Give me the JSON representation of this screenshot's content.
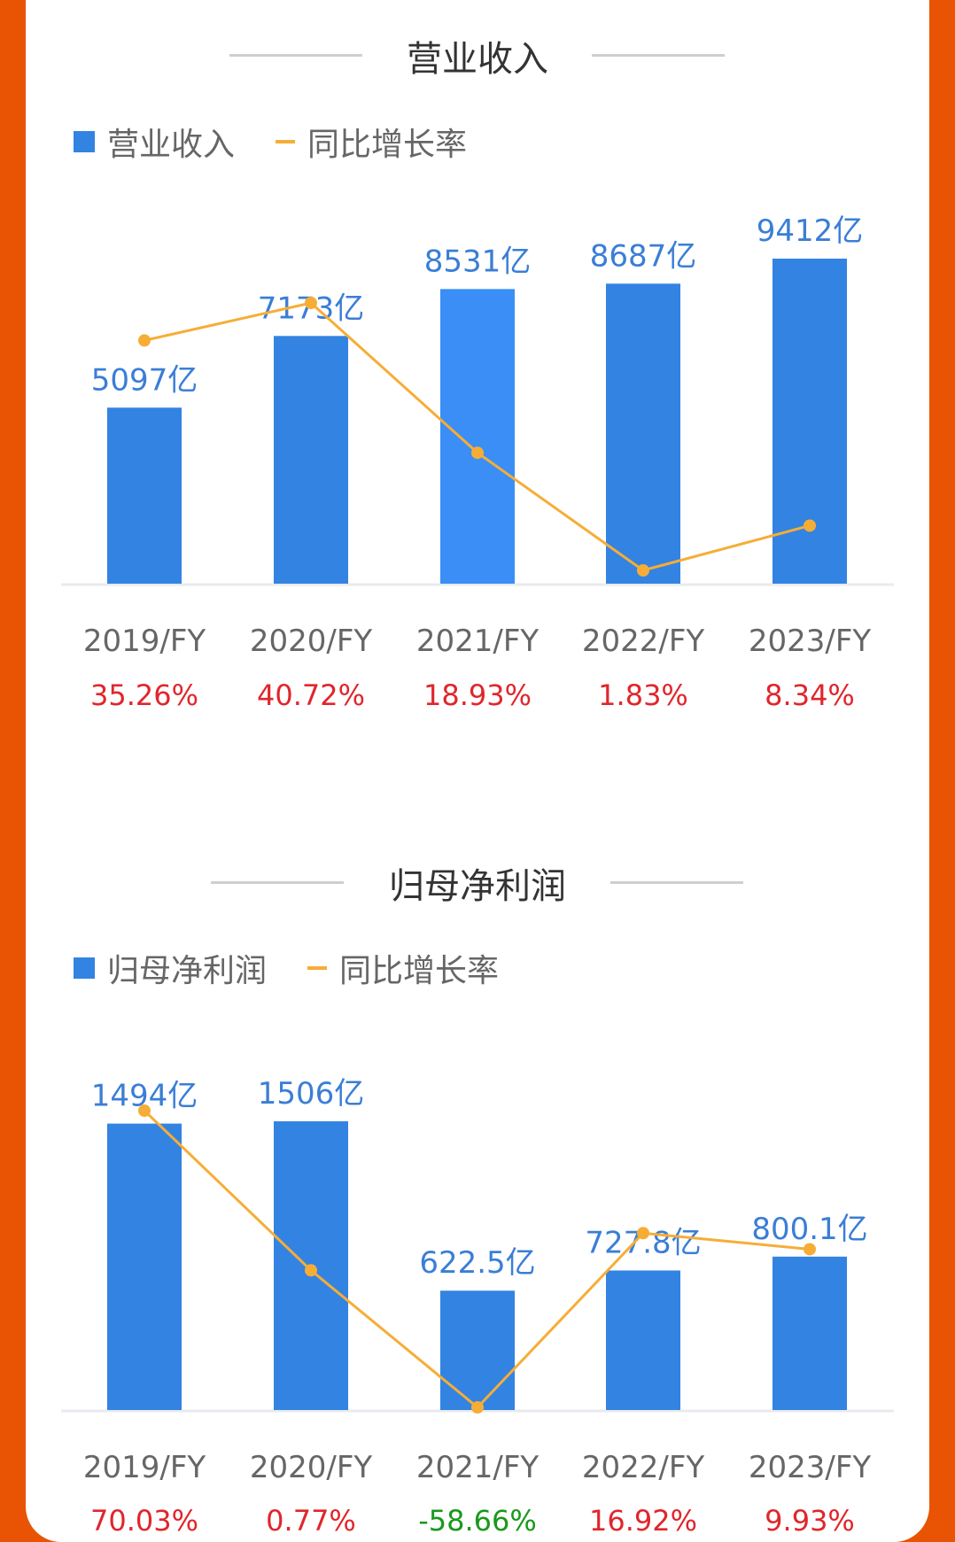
{
  "colors": {
    "bar": "#3383e2",
    "bar_highlight": "#3a8ef6",
    "line": "#f6ad36",
    "up": "#e0262c",
    "down": "#18991b",
    "label": "#3a7ed6",
    "axis_text": "#666666",
    "baseline": "#e8ebef"
  },
  "chart_data": [
    {
      "type": "bar+line",
      "title": "营业收入",
      "legend": {
        "bar": "营业收入",
        "line": "同比增长率"
      },
      "categories": [
        "2019/FY",
        "2020/FY",
        "2021/FY",
        "2022/FY",
        "2023/FY"
      ],
      "bar_values": [
        5097,
        7173,
        8531,
        8687,
        9412
      ],
      "bar_labels": [
        "5097亿",
        "7173亿",
        "8531亿",
        "8687亿",
        "9412亿"
      ],
      "line_values": [
        35.26,
        40.72,
        18.93,
        1.83,
        8.34
      ],
      "line_labels": [
        "35.26%",
        "40.72%",
        "18.93%",
        "1.83%",
        "8.34%"
      ],
      "highlight_index": 2
    },
    {
      "type": "bar+line",
      "title": "归母净利润",
      "legend": {
        "bar": "归母净利润",
        "line": "同比增长率"
      },
      "categories": [
        "2019/FY",
        "2020/FY",
        "2021/FY",
        "2022/FY",
        "2023/FY"
      ],
      "bar_values": [
        1494,
        1506,
        622.5,
        727.8,
        800.1
      ],
      "bar_labels": [
        "1494亿",
        "1506亿",
        "622.5亿",
        "727.8亿",
        "800.1亿"
      ],
      "line_values": [
        70.03,
        0.77,
        -58.66,
        16.92,
        9.93
      ],
      "line_labels": [
        "70.03%",
        "0.77%",
        "-58.66%",
        "16.92%",
        "9.93%"
      ],
      "highlight_index": -1
    }
  ]
}
